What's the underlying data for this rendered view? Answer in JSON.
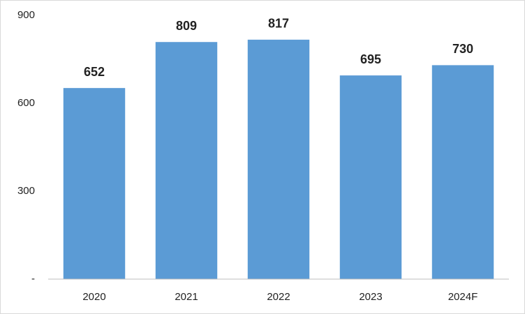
{
  "chart_data": {
    "type": "bar",
    "categories": [
      "2020",
      "2021",
      "2022",
      "2023",
      "2024F"
    ],
    "values": [
      652,
      809,
      817,
      695,
      730
    ],
    "color": "#5b9bd5",
    "ylim": [
      0,
      900
    ],
    "yticks": [
      {
        "value": 0,
        "label": "-"
      },
      300,
      600,
      900
    ],
    "grid": false
  }
}
